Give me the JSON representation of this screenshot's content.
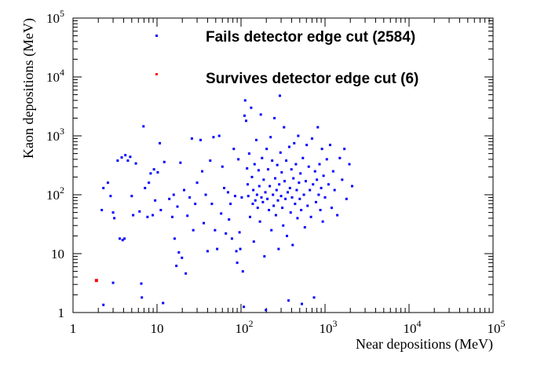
{
  "chart_data": {
    "type": "scatter",
    "title": "",
    "xlabel": "Near depositions (MeV)",
    "ylabel": "Kaon depositions (MeV)",
    "xscale": "log",
    "yscale": "log",
    "xlim": [
      1,
      100000
    ],
    "ylim": [
      1,
      100000
    ],
    "grid": false,
    "legend_position": "top-right",
    "x_tick_labels": [
      {
        "value": 1,
        "base": "1",
        "exp": ""
      },
      {
        "value": 10,
        "base": "10",
        "exp": ""
      },
      {
        "value": 100,
        "base": "10",
        "exp": "2"
      },
      {
        "value": 1000,
        "base": "10",
        "exp": "3"
      },
      {
        "value": 10000,
        "base": "10",
        "exp": "4"
      },
      {
        "value": 100000,
        "base": "10",
        "exp": "5"
      }
    ],
    "y_tick_labels": [
      {
        "value": 1,
        "base": "1",
        "exp": ""
      },
      {
        "value": 10,
        "base": "10",
        "exp": ""
      },
      {
        "value": 100,
        "base": "10",
        "exp": "2"
      },
      {
        "value": 1000,
        "base": "10",
        "exp": "3"
      },
      {
        "value": 10000,
        "base": "10",
        "exp": "4"
      },
      {
        "value": 100000,
        "base": "10",
        "exp": "5"
      }
    ],
    "series": [
      {
        "name": "Fails detector edge cut (2584)",
        "color": "#0000ff",
        "marker": "square",
        "points": [
          [
            2.3,
            1.35
          ],
          [
            2.2,
            55
          ],
          [
            2.3,
            130
          ],
          [
            2.6,
            160
          ],
          [
            2.8,
            95
          ],
          [
            3.0,
            50
          ],
          [
            3.0,
            3.2
          ],
          [
            3.1,
            40
          ],
          [
            3.4,
            380
          ],
          [
            3.6,
            18
          ],
          [
            3.8,
            430
          ],
          [
            3.9,
            17
          ],
          [
            4.1,
            18
          ],
          [
            4.2,
            470
          ],
          [
            4.5,
            380
          ],
          [
            4.8,
            440
          ],
          [
            5.0,
            95
          ],
          [
            5.2,
            45
          ],
          [
            5.6,
            340
          ],
          [
            6.2,
            52
          ],
          [
            6.5,
            3.1
          ],
          [
            6.6,
            1.8
          ],
          [
            6.9,
            1450
          ],
          [
            7.2,
            130
          ],
          [
            7.7,
            42
          ],
          [
            8.0,
            160
          ],
          [
            8.4,
            230
          ],
          [
            8.9,
            45
          ],
          [
            9.2,
            270
          ],
          [
            9.5,
            80
          ],
          [
            10.2,
            240
          ],
          [
            10.8,
            750
          ],
          [
            11.1,
            55
          ],
          [
            11.8,
            1.45
          ],
          [
            12.2,
            360
          ],
          [
            14.0,
            85
          ],
          [
            15.2,
            42
          ],
          [
            15.8,
            100
          ],
          [
            16.2,
            18
          ],
          [
            17.0,
            6.2
          ],
          [
            17.5,
            63
          ],
          [
            18.2,
            10.5
          ],
          [
            19.0,
            350
          ],
          [
            19.8,
            8.5
          ],
          [
            21.0,
            120
          ],
          [
            22.0,
            4.6
          ],
          [
            23.0,
            44
          ],
          [
            24.5,
            90
          ],
          [
            26.0,
            900
          ],
          [
            27.0,
            25
          ],
          [
            28.5,
            70
          ],
          [
            30.0,
            160
          ],
          [
            33.0,
            850
          ],
          [
            34.5,
            250
          ],
          [
            36.0,
            33
          ],
          [
            38.0,
            100
          ],
          [
            40.0,
            11
          ],
          [
            43.0,
            380
          ],
          [
            45.0,
            70
          ],
          [
            47.0,
            950
          ],
          [
            49.0,
            25
          ],
          [
            52.0,
            12
          ],
          [
            55.0,
            1000
          ],
          [
            58.0,
            48
          ],
          [
            60.0,
            300
          ],
          [
            63.0,
            130
          ],
          [
            66.0,
            22
          ],
          [
            70.0,
            110
          ],
          [
            72.0,
            38
          ],
          [
            75.0,
            70
          ],
          [
            78.0,
            18
          ],
          [
            82.0,
            600
          ],
          [
            85.0,
            95
          ],
          [
            88.0,
            11
          ],
          [
            90.0,
            7
          ],
          [
            93.0,
            400
          ],
          [
            96.0,
            23
          ],
          [
            98.0,
            12
          ],
          [
            102.0,
            90
          ],
          [
            105.0,
            5.0
          ],
          [
            108.0,
            1.25
          ],
          [
            110.0,
            2200
          ],
          [
            112.0,
            4000
          ],
          [
            115.0,
            1800
          ],
          [
            118.0,
            280
          ],
          [
            120.0,
            150
          ],
          [
            122.0,
            95
          ],
          [
            125.0,
            500
          ],
          [
            128.0,
            42
          ],
          [
            132.0,
            3000
          ],
          [
            135.0,
            200
          ],
          [
            138.0,
            70
          ],
          [
            140.0,
            120
          ],
          [
            142.0,
            16
          ],
          [
            145.0,
            330
          ],
          [
            148.0,
            80
          ],
          [
            152.0,
            850
          ],
          [
            155.0,
            100
          ],
          [
            158.0,
            60
          ],
          [
            162.0,
            260
          ],
          [
            165.0,
            140
          ],
          [
            168.0,
            35
          ],
          [
            172.0,
            2300
          ],
          [
            175.0,
            90
          ],
          [
            178.0,
            420
          ],
          [
            182.0,
            75
          ],
          [
            186.0,
            180
          ],
          [
            190.0,
            9
          ],
          [
            195.0,
            110
          ],
          [
            198.0,
            1.1
          ],
          [
            202.0,
            600
          ],
          [
            206.0,
            85
          ],
          [
            210.0,
            270
          ],
          [
            215.0,
            55
          ],
          [
            220.0,
            140
          ],
          [
            225.0,
            950
          ],
          [
            230.0,
            25
          ],
          [
            235.0,
            380
          ],
          [
            240.0,
            100
          ],
          [
            245.0,
            65
          ],
          [
            250.0,
            2000
          ],
          [
            255.0,
            190
          ],
          [
            260.0,
            45
          ],
          [
            265.0,
            120
          ],
          [
            270.0,
            320
          ],
          [
            275.0,
            80
          ],
          [
            280.0,
            12
          ],
          [
            285.0,
            150
          ],
          [
            290.0,
            4800
          ],
          [
            295.0,
            520
          ],
          [
            300.0,
            95
          ],
          [
            305.0,
            240
          ],
          [
            310.0,
            60
          ],
          [
            318.0,
            30
          ],
          [
            325.0,
            1400
          ],
          [
            330.0,
            170
          ],
          [
            338.0,
            85
          ],
          [
            345.0,
            380
          ],
          [
            352.0,
            20
          ],
          [
            360.0,
            110
          ],
          [
            368.0,
            1.6
          ],
          [
            375.0,
            650
          ],
          [
            382.0,
            130
          ],
          [
            390.0,
            50
          ],
          [
            398.0,
            270
          ],
          [
            405.0,
            90
          ],
          [
            412.0,
            14
          ],
          [
            420.0,
            190
          ],
          [
            430.0,
            750
          ],
          [
            440.0,
            70
          ],
          [
            450.0,
            330
          ],
          [
            460.0,
            120
          ],
          [
            470.0,
            40
          ],
          [
            480.0,
            1000
          ],
          [
            490.0,
            160
          ],
          [
            500.0,
            85
          ],
          [
            510.0,
            230
          ],
          [
            520.0,
            55
          ],
          [
            530.0,
            1.4
          ],
          [
            545.0,
            420
          ],
          [
            560.0,
            100
          ],
          [
            575.0,
            28
          ],
          [
            590.0,
            170
          ],
          [
            605.0,
            700
          ],
          [
            620.0,
            65
          ],
          [
            640.0,
            300
          ],
          [
            660.0,
            120
          ],
          [
            680.0,
            42
          ],
          [
            700.0,
            900
          ],
          [
            720.0,
            150
          ],
          [
            740.0,
            1.8
          ],
          [
            760.0,
            250
          ],
          [
            780.0,
            75
          ],
          [
            800.0,
            180
          ],
          [
            820.0,
            1400
          ],
          [
            840.0,
            100
          ],
          [
            860.0,
            330
          ],
          [
            880.0,
            55
          ],
          [
            900.0,
            130
          ],
          [
            920.0,
            600
          ],
          [
            940.0,
            35
          ],
          [
            960.0,
            210
          ],
          [
            1000.0,
            90
          ],
          [
            1050.0,
            400
          ],
          [
            1100.0,
            150
          ],
          [
            1150.0,
            700
          ],
          [
            1200.0,
            60
          ],
          [
            1250.0,
            250
          ],
          [
            1300.0,
            120
          ],
          [
            1400.0,
            45
          ],
          [
            1500.0,
            420
          ],
          [
            1600.0,
            180
          ],
          [
            1700.0,
            600
          ],
          [
            1800.0,
            85
          ],
          [
            1950.0,
            330
          ],
          [
            2100.0,
            140
          ]
        ]
      },
      {
        "name": "Survives detector edge cut (6)",
        "color": "#ff0000",
        "marker": "square",
        "points": [
          [
            1.9,
            3.5
          ]
        ]
      }
    ]
  }
}
